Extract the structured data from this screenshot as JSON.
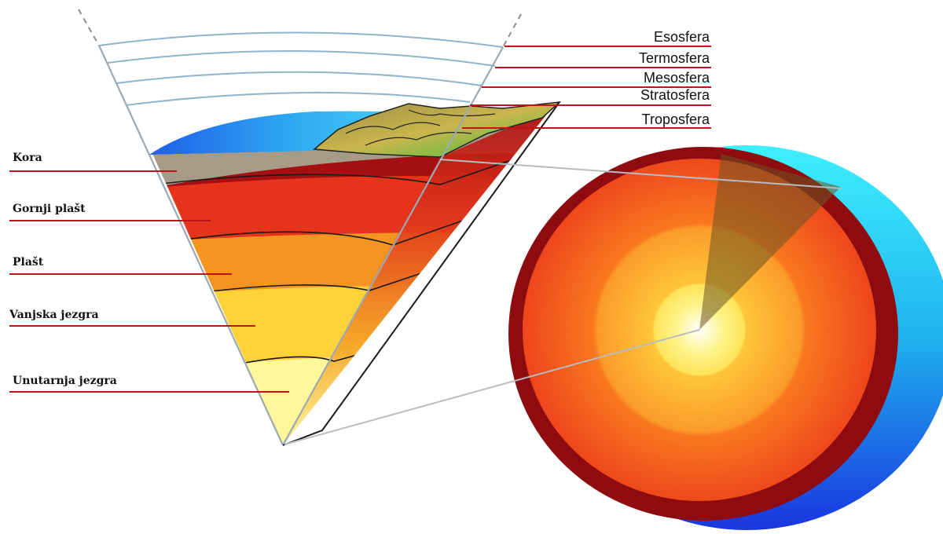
{
  "earth_layers": [
    {
      "name": "Kora",
      "color": "#a59b86"
    },
    {
      "name": "Gornji plašt",
      "color": "#a30f12"
    },
    {
      "name": "Plašt",
      "color": "#e6331b"
    },
    {
      "name": "Vanjska jezgra",
      "color": "#f59421"
    },
    {
      "name": "Unutarnja jezgra",
      "color": "#fff15a"
    }
  ],
  "atmosphere_layers": [
    {
      "name": "Esosfera"
    },
    {
      "name": "Termosfera"
    },
    {
      "name": "Mesosfera"
    },
    {
      "name": "Stratosfera"
    },
    {
      "name": "Troposfera"
    }
  ],
  "colors": {
    "leader_line": "#c0141b",
    "atmosphere_line": "#8fb3c8",
    "ocean_blue": "#1e63e6",
    "sphere_outer": "#8e0c10"
  }
}
